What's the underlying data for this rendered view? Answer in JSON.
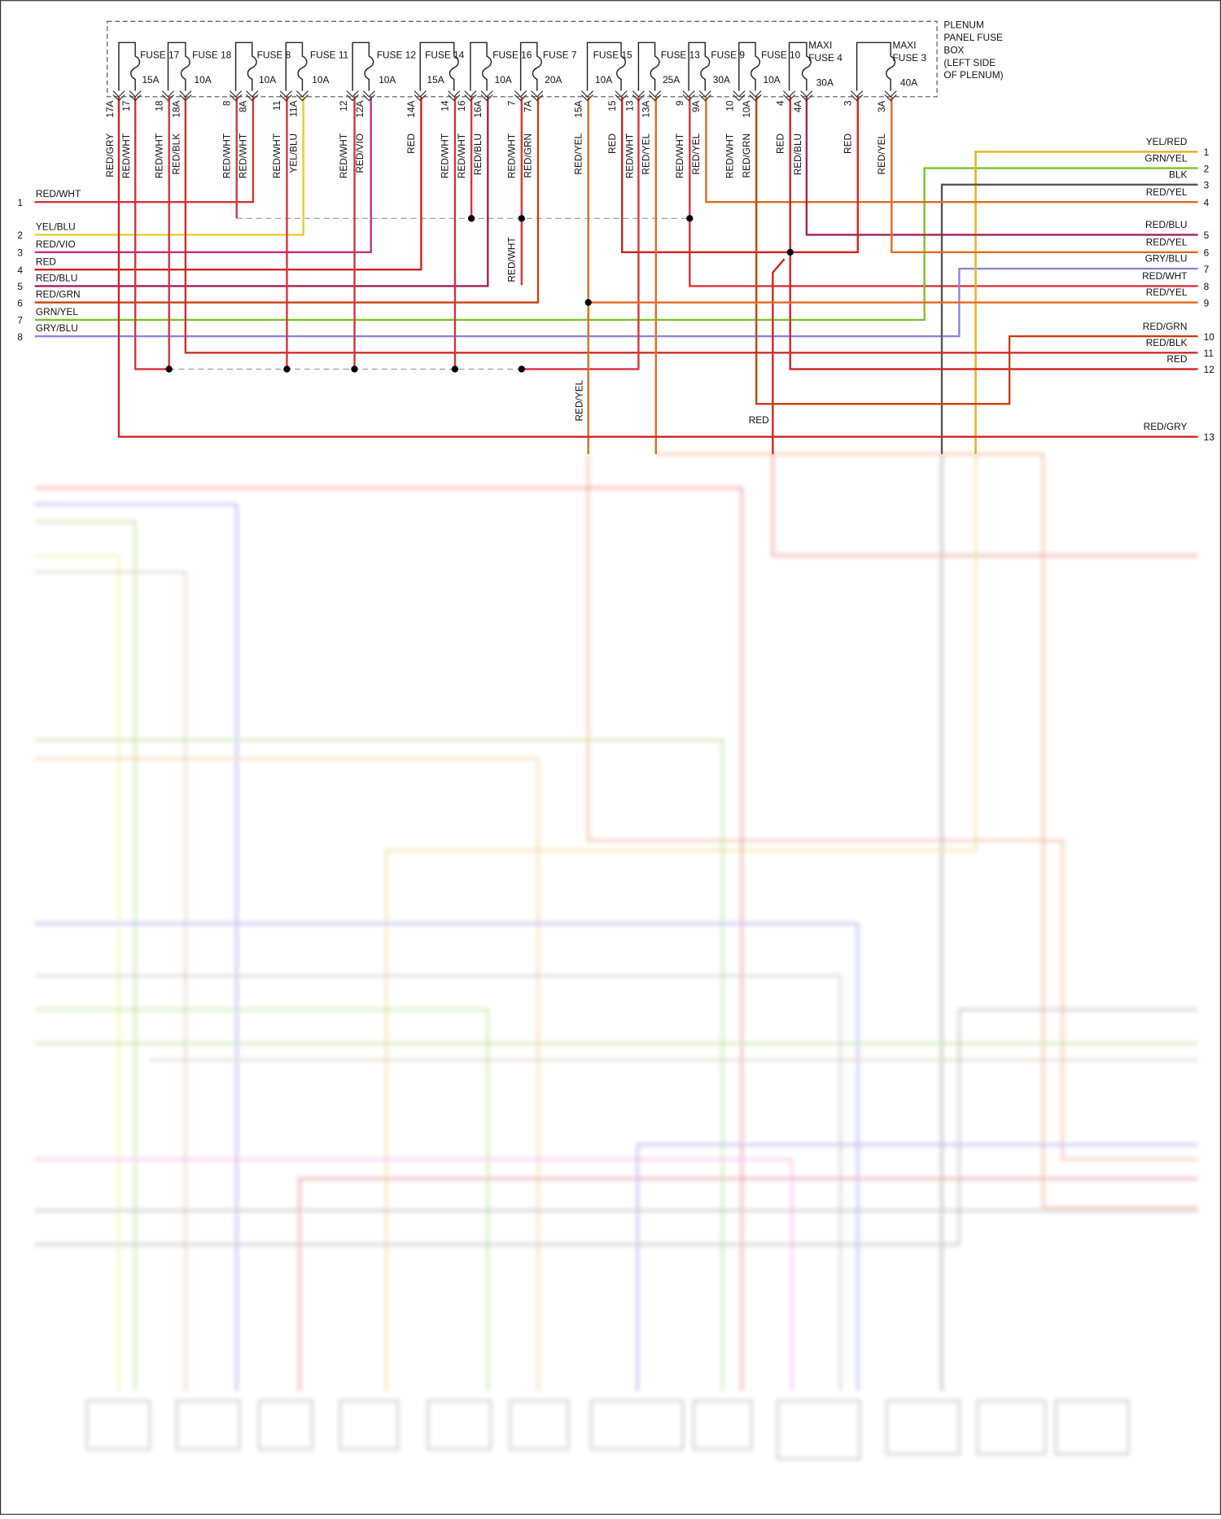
{
  "box_label": [
    "PLENUM",
    "PANEL FUSE",
    "BOX",
    "(LEFT SIDE",
    "OF PLENUM)"
  ],
  "fuses": [
    {
      "name": "FUSE 17",
      "rating": "15A"
    },
    {
      "name": "FUSE 18",
      "rating": "10A"
    },
    {
      "name": "FUSE 8",
      "rating": "10A"
    },
    {
      "name": "FUSE 11",
      "rating": "10A"
    },
    {
      "name": "FUSE 12",
      "rating": "10A"
    },
    {
      "name": "FUSE 14",
      "rating": "15A"
    },
    {
      "name": "FUSE 16",
      "rating": "10A"
    },
    {
      "name": "FUSE 7",
      "rating": "20A"
    },
    {
      "name": "FUSE 15",
      "rating": "10A"
    },
    {
      "name": "FUSE 13",
      "rating": "25A"
    },
    {
      "name": "FUSE 9",
      "rating": "30A"
    },
    {
      "name": "FUSE 10",
      "rating": "10A"
    },
    {
      "prefix": "MAXI",
      "name": "FUSE 4",
      "rating": "30A"
    },
    {
      "prefix": "MAXI",
      "name": "FUSE 3",
      "rating": "40A"
    }
  ],
  "pins": [
    {
      "number": "17A",
      "wire": "RED/GRY"
    },
    {
      "number": "17",
      "wire": "RED/WHT"
    },
    {
      "number": "18",
      "wire": "RED/WHT"
    },
    {
      "number": "18A",
      "wire": "RED/BLK"
    },
    {
      "number": "8",
      "wire": "RED/WHT"
    },
    {
      "number": "8A",
      "wire": "RED/WHT"
    },
    {
      "number": "11",
      "wire": "RED/WHT"
    },
    {
      "number": "11A",
      "wire": "YEL/BLU"
    },
    {
      "number": "12",
      "wire": "RED/WHT"
    },
    {
      "number": "12A",
      "wire": "RED/VIO"
    },
    {
      "number": "14A",
      "wire": "RED"
    },
    {
      "number": "14",
      "wire": "RED/WHT"
    },
    {
      "number": "16",
      "wire": "RED/WHT"
    },
    {
      "number": "16A",
      "wire": "RED/BLU"
    },
    {
      "number": "7",
      "wire": "RED/WHT"
    },
    {
      "number": "7A",
      "wire": "RED/GRN"
    },
    {
      "number": "15A",
      "wire": "RED/YEL"
    },
    {
      "number": "15",
      "wire": "RED"
    },
    {
      "number": "13",
      "wire": "RED/WHT"
    },
    {
      "number": "13A",
      "wire": "RED/YEL"
    },
    {
      "number": "9",
      "wire": "RED/WHT"
    },
    {
      "number": "9A",
      "wire": "RED/YEL"
    },
    {
      "number": "10",
      "wire": "RED/WHT"
    },
    {
      "number": "10A",
      "wire": "RED/GRN"
    },
    {
      "number": "4",
      "wire": "RED"
    },
    {
      "number": "4A",
      "wire": "RED/BLU"
    },
    {
      "number": "3",
      "wire": "RED"
    },
    {
      "number": "3A",
      "wire": "RED/YEL"
    }
  ],
  "left_connector": [
    {
      "pin": "1",
      "wire": "RED/WHT"
    },
    {
      "pin": "2",
      "wire": "YEL/BLU"
    },
    {
      "pin": "3",
      "wire": "RED/VIO"
    },
    {
      "pin": "4",
      "wire": "RED"
    },
    {
      "pin": "5",
      "wire": "RED/BLU"
    },
    {
      "pin": "6",
      "wire": "RED/GRN"
    },
    {
      "pin": "7",
      "wire": "GRN/YEL"
    },
    {
      "pin": "8",
      "wire": "GRY/BLU"
    }
  ],
  "right_connector": [
    {
      "pin": "1",
      "wire": "YEL/RED"
    },
    {
      "pin": "2",
      "wire": "GRN/YEL"
    },
    {
      "pin": "3",
      "wire": "BLK"
    },
    {
      "pin": "4",
      "wire": "RED/YEL"
    },
    {
      "pin": "5",
      "wire": "RED/BLU"
    },
    {
      "pin": "6",
      "wire": "RED/YEL"
    },
    {
      "pin": "7",
      "wire": "GRY/BLU"
    },
    {
      "pin": "8",
      "wire": "RED/WHT"
    },
    {
      "pin": "9",
      "wire": "RED/YEL"
    },
    {
      "pin": "10",
      "wire": "RED/GRN"
    },
    {
      "pin": "11",
      "wire": "RED/BLK"
    },
    {
      "pin": "12",
      "wire": "RED"
    },
    {
      "pin": "13",
      "wire": "RED/GRY"
    }
  ],
  "wire_labels": [
    "RED/WHT",
    "RED/YEL",
    "RED"
  ]
}
